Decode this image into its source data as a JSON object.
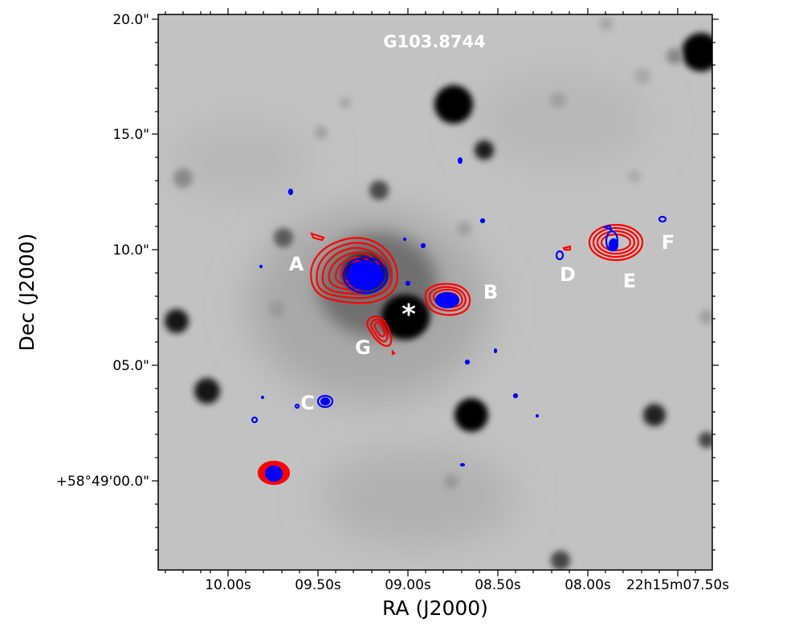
{
  "figure": {
    "field_title": "G103.8744",
    "xlabel": "RA (J2000)",
    "ylabel": "Dec (J2000)",
    "x_ticks": [
      "10.00s",
      "09.50s",
      "09.00s",
      "08.50s",
      "08.00s",
      "22h15m07.50s"
    ],
    "y_ticks": [
      "20.0\"",
      "15.0\"",
      "10.0\"",
      "05.0\"",
      "+58°49'00.0\""
    ],
    "region_labels": [
      "A",
      "B",
      "C",
      "D",
      "E",
      "F",
      "G"
    ],
    "star_marker": "*",
    "colors": {
      "background_gray": "#c0c0c0",
      "red_contours": "#ff0000",
      "blue_contours": "#0000ff",
      "label_text": "#ffffff"
    }
  }
}
